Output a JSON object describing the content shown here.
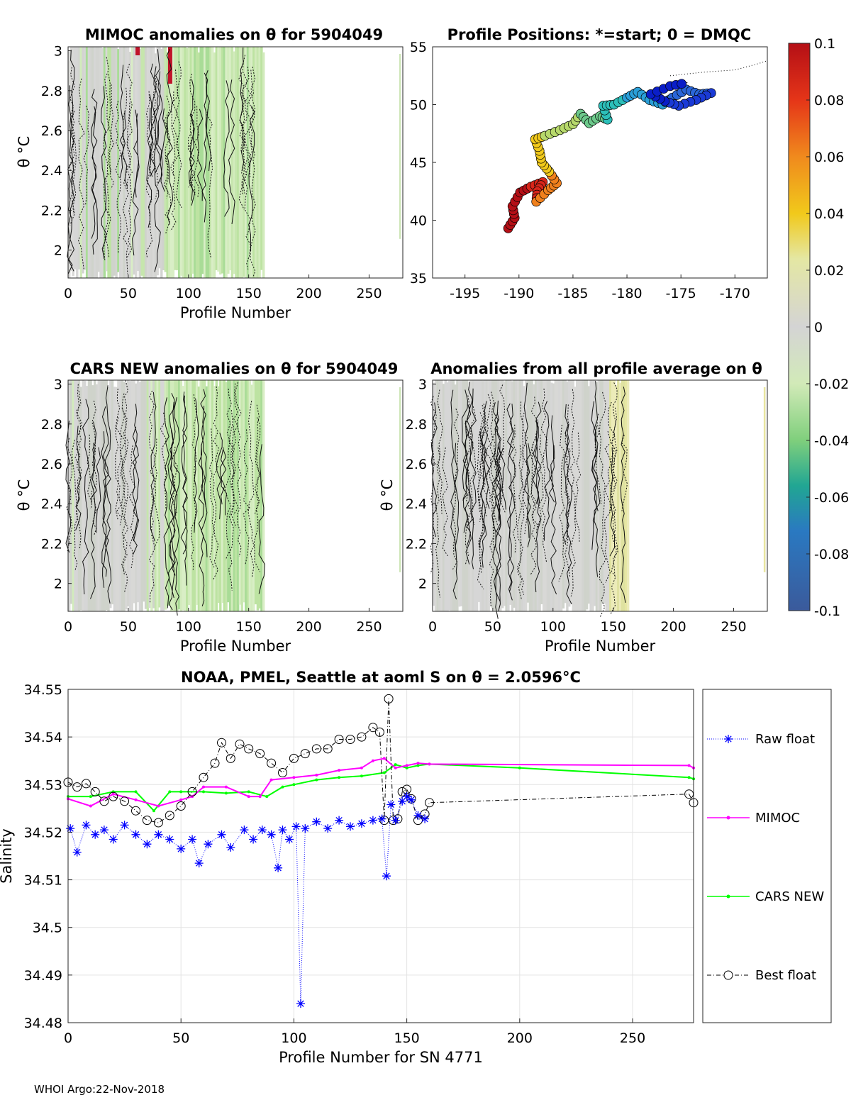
{
  "chart_data": [
    {
      "id": "mimoc",
      "type": "heatmap",
      "title": "MIMOC anomalies on θ  for 5904049",
      "xlabel": "Profile Number",
      "ylabel": "θ °C",
      "xlim": [
        0,
        278
      ],
      "ylim": [
        1.86,
        3.02
      ],
      "xticks": [
        0,
        50,
        100,
        150,
        200,
        250
      ],
      "yticks": [
        2,
        2.2,
        2.4,
        2.6,
        2.8,
        3
      ],
      "data_extent_profiles": [
        0,
        163
      ]
    },
    {
      "id": "positions",
      "type": "scatter",
      "title": "Profile Positions: *=start; 0 = DMQC",
      "xlim": [
        -198,
        -167
      ],
      "ylim": [
        35,
        55
      ],
      "xticks": [
        -195,
        -190,
        -185,
        -180,
        -175,
        -170
      ],
      "yticks": [
        35,
        40,
        45,
        50,
        55
      ],
      "track": [
        [
          -191,
          39.3
        ],
        [
          -190.4,
          40.2
        ],
        [
          -190.6,
          41.2
        ],
        [
          -189.9,
          42.4
        ],
        [
          -188.9,
          42.9
        ],
        [
          -187.8,
          43.3
        ],
        [
          -188.3,
          42.5
        ],
        [
          -188.4,
          41.6
        ],
        [
          -187.3,
          42.6
        ],
        [
          -186.5,
          43.2
        ],
        [
          -187.2,
          44.2
        ],
        [
          -187.9,
          45.0
        ],
        [
          -188.1,
          46.0
        ],
        [
          -188.5,
          47.0
        ],
        [
          -187.6,
          47.3
        ],
        [
          -186.2,
          47.8
        ],
        [
          -185.0,
          48.3
        ],
        [
          -184.3,
          49.2
        ],
        [
          -183.5,
          48.4
        ],
        [
          -182.5,
          49.0
        ],
        [
          -181.8,
          48.7
        ],
        [
          -182.2,
          49.9
        ],
        [
          -181.2,
          50.0
        ],
        [
          -180.0,
          50.6
        ],
        [
          -179.0,
          51.1
        ],
        [
          -177.9,
          50.4
        ],
        [
          -176.7,
          50.0
        ],
        [
          -175.8,
          50.6
        ],
        [
          -174.5,
          51.3
        ],
        [
          -173.3,
          50.9
        ],
        [
          -172.2,
          51.0
        ],
        [
          -173.6,
          50.4
        ],
        [
          -175.2,
          49.9
        ],
        [
          -176.5,
          50.3
        ],
        [
          -177.8,
          50.9
        ],
        [
          -176.0,
          51.6
        ],
        [
          -174.4,
          51.9
        ]
      ],
      "tail": [
        [
          -176,
          52.5
        ],
        [
          -173,
          52.8
        ],
        [
          -170,
          53.0
        ],
        [
          -168,
          53.5
        ],
        [
          -167,
          53.8
        ]
      ]
    },
    {
      "id": "cars",
      "type": "heatmap",
      "title": "CARS NEW anomalies on θ for 5904049",
      "xlabel": "Profile Number",
      "ylabel": "θ °C",
      "xlim": [
        0,
        278
      ],
      "ylim": [
        1.86,
        3.02
      ],
      "xticks": [
        0,
        50,
        100,
        150,
        200,
        250
      ],
      "yticks": [
        2,
        2.2,
        2.4,
        2.6,
        2.8,
        3
      ],
      "data_extent_profiles": [
        0,
        163
      ]
    },
    {
      "id": "allavg",
      "type": "heatmap",
      "title": "Anomalies from all profile average on θ",
      "xlabel": "Profile Number",
      "ylabel": "θ °C",
      "xlim": [
        0,
        278
      ],
      "ylim": [
        1.86,
        3.02
      ],
      "xticks": [
        0,
        50,
        100,
        150,
        200,
        250
      ],
      "yticks": [
        2,
        2.2,
        2.4,
        2.6,
        2.8,
        3
      ],
      "data_extent_profiles": [
        0,
        163
      ]
    },
    {
      "id": "colorbar",
      "type": "colorbar",
      "range": [
        -0.1,
        0.1
      ],
      "ticks": [
        "0.1",
        "0.08",
        "0.06",
        "0.04",
        "0.02",
        "0",
        "-0.02",
        "-0.04",
        "-0.06",
        "-0.08",
        "-0.1"
      ]
    },
    {
      "id": "salinity",
      "type": "line",
      "title": "NOAA, PMEL, Seattle at aoml S on θ = 2.0596°C",
      "xlabel": "Profile Number for SN 4771",
      "ylabel": "Salinity",
      "xlim": [
        0,
        277
      ],
      "ylim": [
        34.48,
        34.55
      ],
      "xticks": [
        0,
        50,
        100,
        150,
        200,
        250
      ],
      "yticks": [
        "34.48",
        "34.49",
        "34.5",
        "34.51",
        "34.52",
        "34.53",
        "34.54",
        "34.55"
      ],
      "legend": [
        "Raw float",
        "MIMOC",
        "CARS NEW",
        "Best float"
      ],
      "series": [
        {
          "name": "Raw float",
          "color": "#0000ff",
          "x": [
            1,
            4,
            8,
            12,
            16,
            20,
            25,
            30,
            35,
            40,
            45,
            50,
            55,
            58,
            62,
            68,
            72,
            78,
            82,
            86,
            90,
            93,
            95,
            98,
            101,
            103,
            105,
            110,
            115,
            120,
            125,
            130,
            135,
            139,
            141,
            143,
            145,
            148,
            150,
            152,
            155,
            158
          ],
          "y": [
            34.5208,
            34.5158,
            34.5215,
            34.5195,
            34.5205,
            34.5185,
            34.5215,
            34.5195,
            34.5175,
            34.5195,
            34.5185,
            34.5165,
            34.5185,
            34.5135,
            34.5175,
            34.5195,
            34.5168,
            34.5205,
            34.5185,
            34.5205,
            34.5195,
            34.5125,
            34.5205,
            34.5185,
            34.5212,
            34.484,
            34.5208,
            34.5222,
            34.5208,
            34.5225,
            34.5212,
            34.5218,
            34.5225,
            34.5228,
            34.5108,
            34.5258,
            34.5225,
            34.5265,
            34.5275,
            34.5268,
            34.5235,
            34.5228
          ]
        },
        {
          "name": "MIMOC",
          "color": "#ff00ff",
          "x": [
            0,
            10,
            20,
            30,
            40,
            50,
            55,
            60,
            70,
            80,
            85,
            90,
            100,
            110,
            120,
            130,
            135,
            140,
            145,
            150,
            155,
            160,
            275,
            277
          ],
          "y": [
            34.527,
            34.5255,
            34.528,
            34.5268,
            34.5255,
            34.5268,
            34.5275,
            34.5295,
            34.5295,
            34.5275,
            34.5275,
            34.531,
            34.5315,
            34.532,
            34.533,
            34.5335,
            34.535,
            34.5355,
            34.5335,
            34.534,
            34.5345,
            34.5343,
            34.534,
            34.5335
          ]
        },
        {
          "name": "CARS NEW",
          "color": "#00ff00",
          "x": [
            0,
            10,
            20,
            30,
            38,
            45,
            50,
            60,
            70,
            80,
            88,
            95,
            100,
            110,
            120,
            130,
            140,
            145,
            150,
            155,
            160,
            200,
            275,
            277
          ],
          "y": [
            34.5275,
            34.5275,
            34.5285,
            34.5285,
            34.5245,
            34.5285,
            34.5285,
            34.5285,
            34.5282,
            34.5285,
            34.5275,
            34.5295,
            34.53,
            34.531,
            34.5315,
            34.5318,
            34.5325,
            34.5342,
            34.5335,
            34.534,
            34.5343,
            34.5335,
            34.5315,
            34.5312
          ]
        },
        {
          "name": "Best float",
          "color": "#000000",
          "x": [
            0,
            4,
            8,
            12,
            16,
            20,
            25,
            30,
            35,
            40,
            45,
            50,
            55,
            60,
            65,
            68,
            72,
            76,
            80,
            85,
            90,
            95,
            100,
            105,
            110,
            115,
            120,
            125,
            130,
            135,
            138,
            140,
            142,
            144,
            146,
            148,
            150,
            152,
            155,
            158,
            160,
            275,
            277
          ],
          "y": [
            34.5305,
            34.5295,
            34.5302,
            34.5285,
            34.5265,
            34.5275,
            34.5265,
            34.5245,
            34.5225,
            34.522,
            34.5235,
            34.5255,
            34.5285,
            34.5315,
            34.5345,
            34.5388,
            34.5355,
            34.5385,
            34.5375,
            34.5365,
            34.5345,
            34.5325,
            34.5355,
            34.5365,
            34.5375,
            34.5375,
            34.5395,
            34.5395,
            34.54,
            34.542,
            34.541,
            34.5225,
            34.548,
            34.5225,
            34.5228,
            34.5285,
            34.529,
            34.527,
            34.5225,
            34.5238,
            34.5262,
            34.528,
            34.5262
          ]
        }
      ]
    }
  ],
  "footer": "WHOI Argo:22-Nov-2018"
}
